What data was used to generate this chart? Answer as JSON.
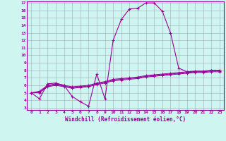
{
  "xlabel": "Windchill (Refroidissement éolien,°C)",
  "x_values": [
    0,
    1,
    2,
    3,
    4,
    5,
    6,
    7,
    8,
    9,
    10,
    11,
    12,
    13,
    14,
    15,
    16,
    17,
    18,
    19,
    20,
    21,
    22,
    23
  ],
  "line1": [
    5.0,
    4.2,
    6.2,
    6.3,
    6.0,
    4.5,
    3.8,
    3.2,
    7.5,
    4.2,
    12.0,
    14.8,
    16.2,
    16.3,
    17.0,
    17.0,
    15.9,
    13.0,
    8.3,
    7.8,
    7.8,
    7.8,
    8.0,
    8.0
  ],
  "line2": [
    5.0,
    5.2,
    6.0,
    6.2,
    6.0,
    5.8,
    5.9,
    6.0,
    6.3,
    6.5,
    6.8,
    6.9,
    7.0,
    7.1,
    7.3,
    7.4,
    7.5,
    7.6,
    7.7,
    7.8,
    7.9,
    7.9,
    8.0,
    8.0
  ],
  "line3": [
    5.0,
    5.1,
    5.9,
    6.1,
    5.9,
    5.7,
    5.8,
    5.9,
    6.2,
    6.4,
    6.7,
    6.8,
    6.9,
    7.0,
    7.2,
    7.3,
    7.4,
    7.5,
    7.6,
    7.7,
    7.8,
    7.8,
    7.9,
    7.9
  ],
  "line4": [
    5.0,
    5.0,
    5.8,
    6.0,
    5.8,
    5.6,
    5.7,
    5.8,
    6.1,
    6.3,
    6.6,
    6.7,
    6.8,
    6.9,
    7.1,
    7.2,
    7.3,
    7.4,
    7.5,
    7.6,
    7.7,
    7.7,
    7.8,
    7.8
  ],
  "line_color": "#990099",
  "bg_color": "#cef5ef",
  "grid_color": "#9999aa",
  "ylim": [
    3,
    17
  ],
  "yticks": [
    3,
    4,
    5,
    6,
    7,
    8,
    9,
    10,
    11,
    12,
    13,
    14,
    15,
    16,
    17
  ]
}
